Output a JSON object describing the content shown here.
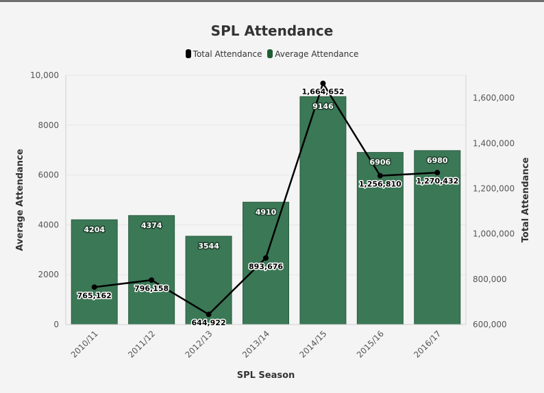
{
  "chart_data": {
    "type": "bar+line",
    "title": "SPL Attendance",
    "xlabel": "SPL Season",
    "ylabel_left": "Average Attendance",
    "ylabel_right": "Total Attendance",
    "categories": [
      "2010/11",
      "2011/12",
      "2012/13",
      "2013/14",
      "2014/15",
      "2015/16",
      "2016/17"
    ],
    "series": [
      {
        "name": "Average Attendance",
        "type": "bar",
        "axis": "left",
        "color": "#3b7856",
        "values": [
          4204,
          4374,
          3544,
          4910,
          9146,
          6906,
          6980
        ],
        "labels": [
          "4204",
          "4374",
          "3544",
          "4910",
          "9146",
          "6906",
          "6980"
        ]
      },
      {
        "name": "Total Attendance",
        "type": "line",
        "axis": "right",
        "color": "#000000",
        "values": [
          765162,
          796158,
          644922,
          893676,
          1664652,
          1256810,
          1270432
        ],
        "labels": [
          "765,162",
          "796,158",
          "644,922",
          "893,676",
          "1,664,652",
          "1,256,810",
          "1,270,432"
        ]
      }
    ],
    "ylim_left": [
      0,
      10000
    ],
    "yticks_left": [
      0,
      2000,
      4000,
      6000,
      8000,
      10000
    ],
    "ytick_labels_left": [
      "0",
      "2000",
      "4000",
      "6000",
      "8000",
      "10,000"
    ],
    "ylim_right": [
      600000,
      1700000
    ],
    "yticks_right": [
      600000,
      800000,
      1000000,
      1200000,
      1400000,
      1600000
    ],
    "ytick_labels_right": [
      "600,000",
      "800,000",
      "1,000,000",
      "1,200,000",
      "1,400,000",
      "1,600,000"
    ],
    "legend": [
      "Total Attendance",
      "Average Attendance"
    ],
    "legend_position": "top-center"
  }
}
